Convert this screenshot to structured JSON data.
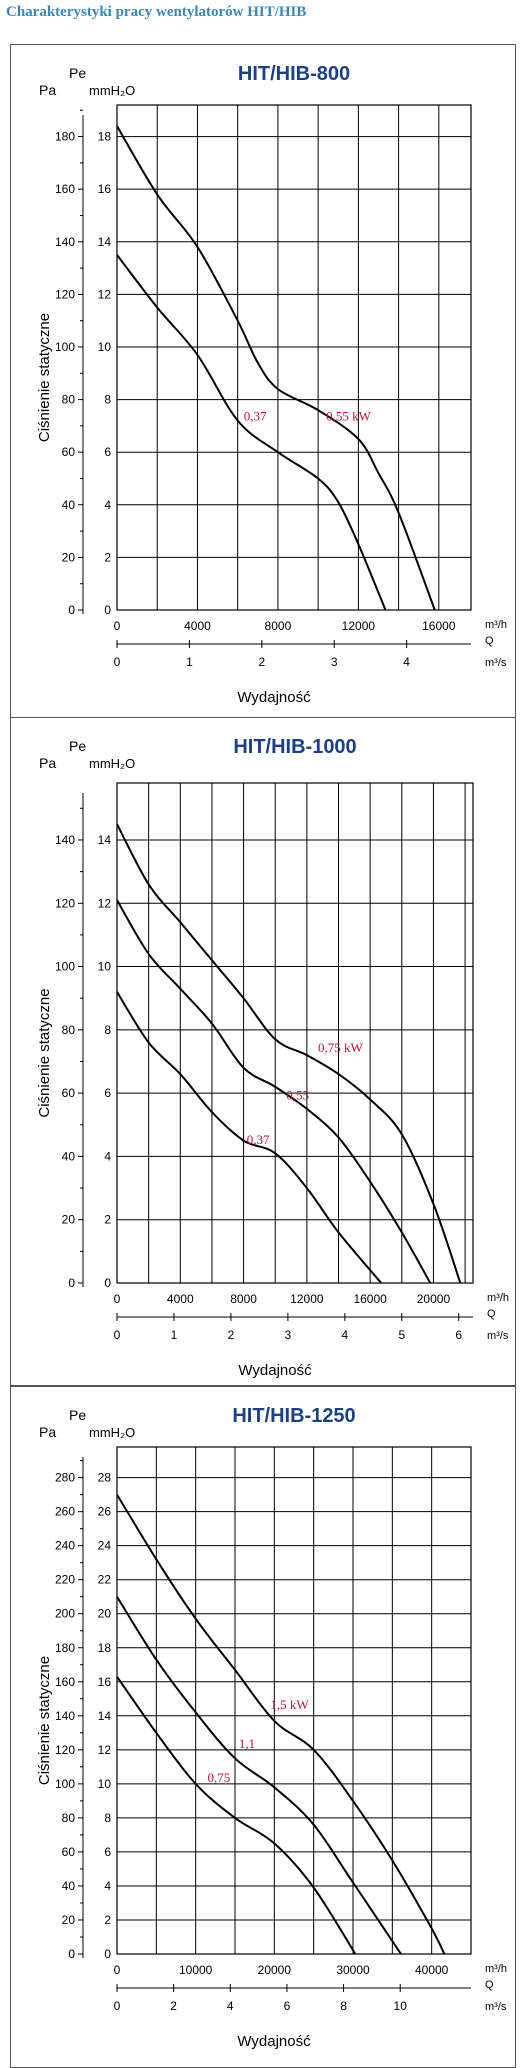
{
  "page": {
    "heading": "Charakterystyki pracy wentylatorów HIT/HIB"
  },
  "colors": {
    "heading": "#3a86b7",
    "title": "#1c3f8a",
    "kw_label": "#c8102e",
    "curve": "#000000",
    "grid": "#000000"
  },
  "chart_data": [
    {
      "type": "line",
      "title": "HIT/HIB-800",
      "y_left_label": "Pa",
      "y_right_label": "Pe",
      "y_right_unit_label": "mmH₂O",
      "ylabel": "Ciśnienie statyczne",
      "xlabel": "Wydajność",
      "x_unit_top": "m³/h",
      "x_unit_q": "Q",
      "x_unit_bottom": "m³/s",
      "xlim": [
        0,
        17600
      ],
      "ylim": [
        0,
        192
      ],
      "x_ticks": [
        "0",
        "4000",
        "8000",
        "12000",
        "16000"
      ],
      "x2_ticks": [
        "0",
        "1",
        "2",
        "3",
        "4"
      ],
      "y_ticks": [
        "0",
        "20",
        "40",
        "60",
        "80",
        "100",
        "120",
        "140",
        "160",
        "180"
      ],
      "y2_ticks": [
        "0",
        "2",
        "4",
        "6",
        "8",
        "10",
        "12",
        "14",
        "16",
        "18"
      ],
      "grid": true,
      "series": [
        {
          "name": "0,37",
          "x": [
            0,
            2000,
            4000,
            6000,
            8000,
            10000,
            11000,
            12000,
            13350
          ],
          "y": [
            135,
            115,
            97,
            72,
            60,
            50,
            41,
            25,
            0
          ]
        },
        {
          "name": "0,55 kW",
          "x": [
            0,
            2000,
            4000,
            6000,
            7000,
            8000,
            10000,
            12000,
            13000,
            14000,
            15800
          ],
          "y": [
            184,
            158,
            138,
            110,
            94,
            84,
            76,
            65,
            52,
            37,
            0
          ]
        }
      ],
      "annotations": [
        {
          "text": "0,37",
          "x": 6300,
          "y": 72
        },
        {
          "text": "0,55  kW",
          "x": 10400,
          "y": 72
        }
      ]
    },
    {
      "type": "line",
      "title": "HIT/HIB-1000",
      "y_left_label": "Pa",
      "y_right_label": "Pe",
      "y_right_unit_label": "mmH₂O",
      "ylabel": "Ciśnienie statyczne",
      "xlabel": "Wydajność",
      "x_unit_top": "m³/h",
      "x_unit_q": "Q",
      "x_unit_bottom": "m³/s",
      "xlim": [
        0,
        22500
      ],
      "ylim": [
        0,
        158
      ],
      "x_ticks": [
        "0",
        "4000",
        "8000",
        "12000",
        "16000",
        "20000"
      ],
      "x2_ticks": [
        "0",
        "1",
        "2",
        "3",
        "4",
        "5",
        "6"
      ],
      "y_ticks": [
        "0",
        "20",
        "40",
        "60",
        "80",
        "100",
        "120",
        "140"
      ],
      "y2_ticks": [
        "0",
        "2",
        "4",
        "6",
        "8",
        "10",
        "12",
        "14"
      ],
      "grid": true,
      "series": [
        {
          "name": "0,37",
          "x": [
            0,
            2000,
            4000,
            6000,
            8000,
            10000,
            12000,
            14000,
            16700
          ],
          "y": [
            92,
            76,
            66,
            54,
            45,
            41,
            30,
            16,
            0
          ]
        },
        {
          "name": "0,55",
          "x": [
            0,
            2000,
            4000,
            6000,
            8000,
            10000,
            12000,
            14000,
            16000,
            18000,
            19800
          ],
          "y": [
            121,
            104,
            93,
            82,
            68,
            62,
            55,
            46,
            32,
            16,
            0
          ]
        },
        {
          "name": "0,75 kW",
          "x": [
            0,
            2000,
            4000,
            6000,
            8000,
            10000,
            12000,
            14000,
            16000,
            18000,
            20000,
            21700
          ],
          "y": [
            145,
            126,
            114,
            102,
            90,
            77,
            72,
            66,
            58,
            47,
            25,
            0
          ]
        }
      ],
      "annotations": [
        {
          "text": "0,37",
          "x": 8200,
          "y": 44
        },
        {
          "text": "0,55",
          "x": 10700,
          "y": 58
        },
        {
          "text": "0,75  kW",
          "x": 12700,
          "y": 73
        }
      ]
    },
    {
      "type": "line",
      "title": "HIT/HIB-1250",
      "y_left_label": "Pa",
      "y_right_label": "Pe",
      "y_right_unit_label": "mmH₂O",
      "ylabel": "Ciśnienie statyczne",
      "xlabel": "Wydajność",
      "x_unit_top": "m³/h",
      "x_unit_q": "Q",
      "x_unit_bottom": "m³/s",
      "xlim": [
        0,
        45000
      ],
      "ylim": [
        0,
        298
      ],
      "x_ticks": [
        "0",
        "10000",
        "20000",
        "30000",
        "40000"
      ],
      "x2_ticks": [
        "0",
        "2",
        "4",
        "6",
        "8",
        "10"
      ],
      "y_ticks": [
        "0",
        "20",
        "40",
        "60",
        "80",
        "100",
        "120",
        "140",
        "160",
        "180",
        "200",
        "220",
        "240",
        "260",
        "280"
      ],
      "y2_ticks": [
        "0",
        "2",
        "4",
        "6",
        "8",
        "10",
        "12",
        "14",
        "16",
        "18",
        "20",
        "22",
        "24",
        "26",
        "28"
      ],
      "grid": true,
      "series": [
        {
          "name": "0,75",
          "x": [
            0,
            5000,
            10000,
            15000,
            20000,
            25000,
            30300
          ],
          "y": [
            163,
            130,
            100,
            80,
            65,
            39,
            0
          ]
        },
        {
          "name": "1,1",
          "x": [
            0,
            5000,
            10000,
            15000,
            20000,
            25000,
            30000,
            36100
          ],
          "y": [
            210,
            173,
            142,
            115,
            98,
            76,
            42,
            0
          ]
        },
        {
          "name": "1,5 kW",
          "x": [
            0,
            5000,
            10000,
            15000,
            20000,
            25000,
            30000,
            35000,
            40000,
            41600
          ],
          "y": [
            270,
            232,
            197,
            167,
            137,
            120,
            90,
            55,
            15,
            0
          ]
        }
      ],
      "annotations": [
        {
          "text": "0,75",
          "x": 11500,
          "y": 101
        },
        {
          "text": "1,1",
          "x": 15500,
          "y": 121
        },
        {
          "text": "1,5 kW",
          "x": 19500,
          "y": 144
        }
      ]
    }
  ]
}
